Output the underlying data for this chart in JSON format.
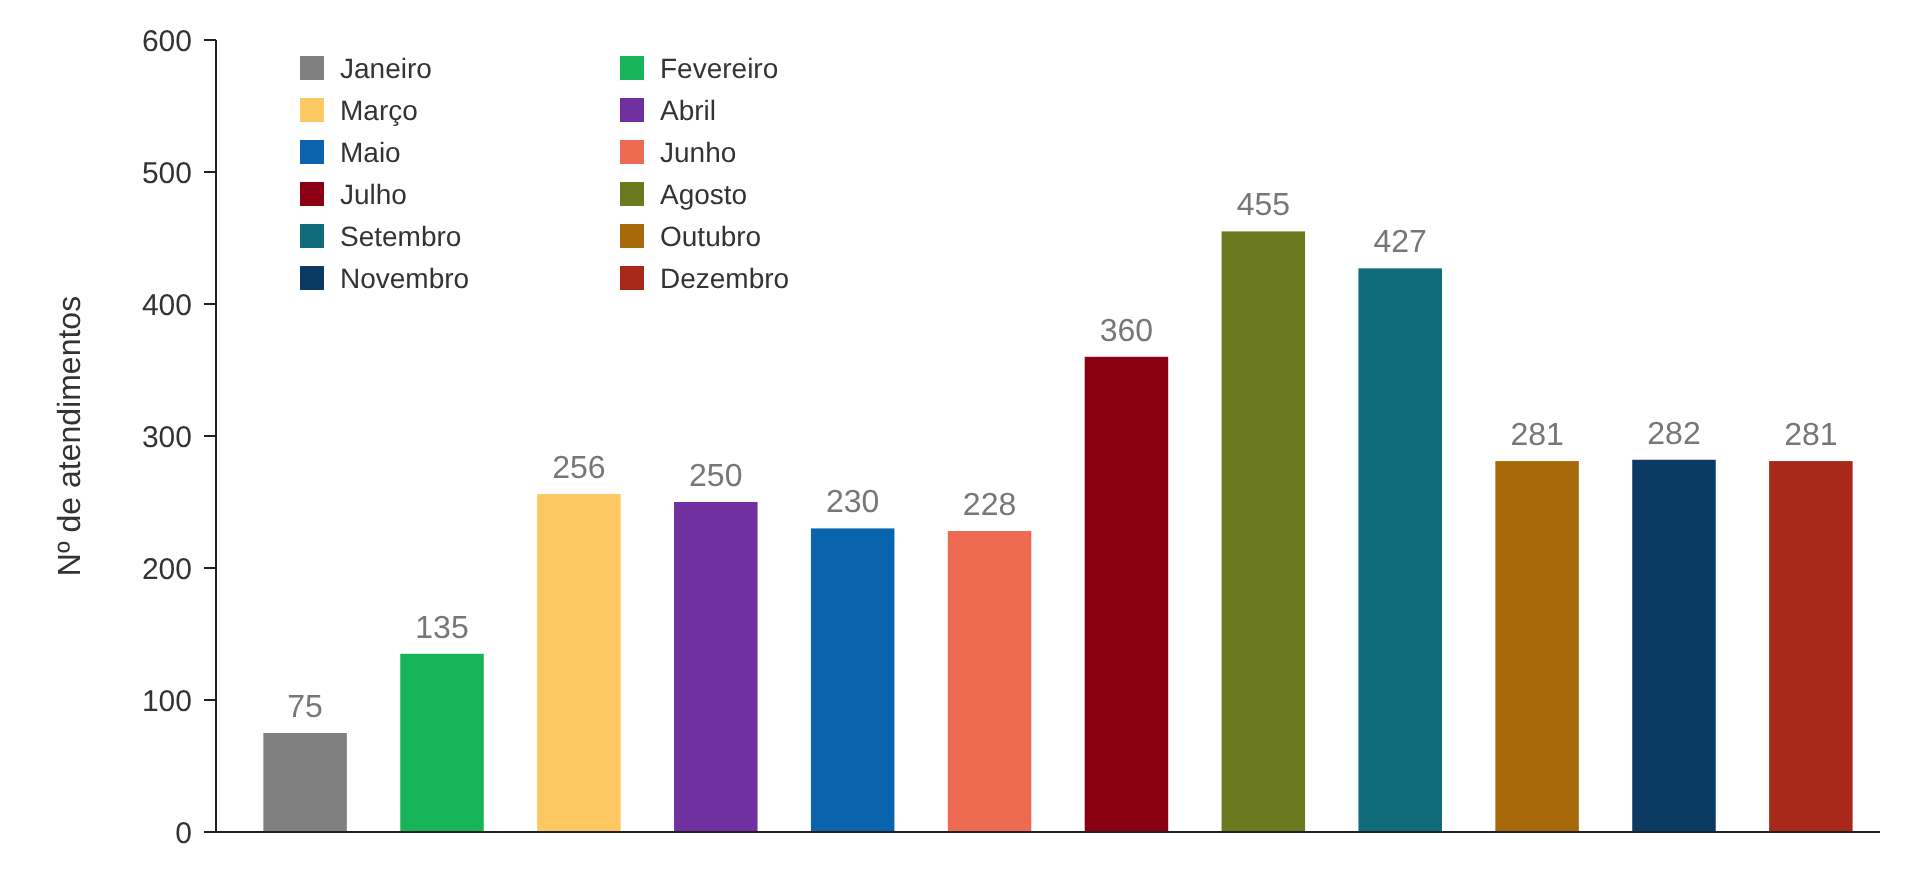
{
  "chart_data": {
    "type": "bar",
    "ylabel": "Nº de atendimentos",
    "categories": [
      null,
      null,
      null,
      null,
      null,
      null,
      null,
      null,
      null,
      null,
      null,
      null
    ],
    "series": [
      {
        "name": "Janeiro",
        "color": "#808080",
        "values": [
          75,
          null,
          null,
          null,
          null,
          null,
          null,
          null,
          null,
          null,
          null,
          null
        ]
      },
      {
        "name": "Fevereiro",
        "color": "#18b45a",
        "values": [
          null,
          135,
          null,
          null,
          null,
          null,
          null,
          null,
          null,
          null,
          null,
          null
        ]
      },
      {
        "name": "Março",
        "color": "#fcc862",
        "values": [
          null,
          null,
          256,
          null,
          null,
          null,
          null,
          null,
          null,
          null,
          null,
          null
        ]
      },
      {
        "name": "Abril",
        "color": "#7030a0",
        "values": [
          null,
          null,
          null,
          250,
          null,
          null,
          null,
          null,
          null,
          null,
          null,
          null
        ]
      },
      {
        "name": "Maio",
        "color": "#0a64ad",
        "values": [
          null,
          null,
          null,
          null,
          230,
          null,
          null,
          null,
          null,
          null,
          null,
          null
        ]
      },
      {
        "name": "Junho",
        "color": "#ee6a50",
        "values": [
          null,
          null,
          null,
          null,
          null,
          228,
          null,
          null,
          null,
          null,
          null,
          null
        ]
      },
      {
        "name": "Julho",
        "color": "#8b0012",
        "values": [
          null,
          null,
          null,
          null,
          null,
          null,
          360,
          null,
          null,
          null,
          null,
          null
        ]
      },
      {
        "name": "Agosto",
        "color": "#6b7a1f",
        "values": [
          null,
          null,
          null,
          null,
          null,
          null,
          null,
          455,
          null,
          null,
          null,
          null
        ]
      },
      {
        "name": "Setembro",
        "color": "#0f6b78",
        "values": [
          null,
          null,
          null,
          null,
          null,
          null,
          null,
          null,
          427,
          null,
          null,
          null
        ]
      },
      {
        "name": "Outubro",
        "color": "#a8690a",
        "values": [
          null,
          null,
          null,
          null,
          null,
          null,
          null,
          null,
          null,
          281,
          null,
          null
        ]
      },
      {
        "name": "Novembro",
        "color": "#0b3a62",
        "values": [
          null,
          null,
          null,
          null,
          null,
          null,
          null,
          null,
          null,
          null,
          282,
          null
        ]
      },
      {
        "name": "Dezembro",
        "color": "#a8281a",
        "values": [
          null,
          null,
          null,
          null,
          null,
          null,
          null,
          null,
          null,
          null,
          null,
          281
        ]
      }
    ],
    "ylim": [
      0,
      600
    ],
    "yticks": [
      0,
      100,
      200,
      300,
      400,
      500,
      600
    ],
    "data_labels": true,
    "legend": "top left",
    "tick_labels": "y",
    "grid": false
  }
}
